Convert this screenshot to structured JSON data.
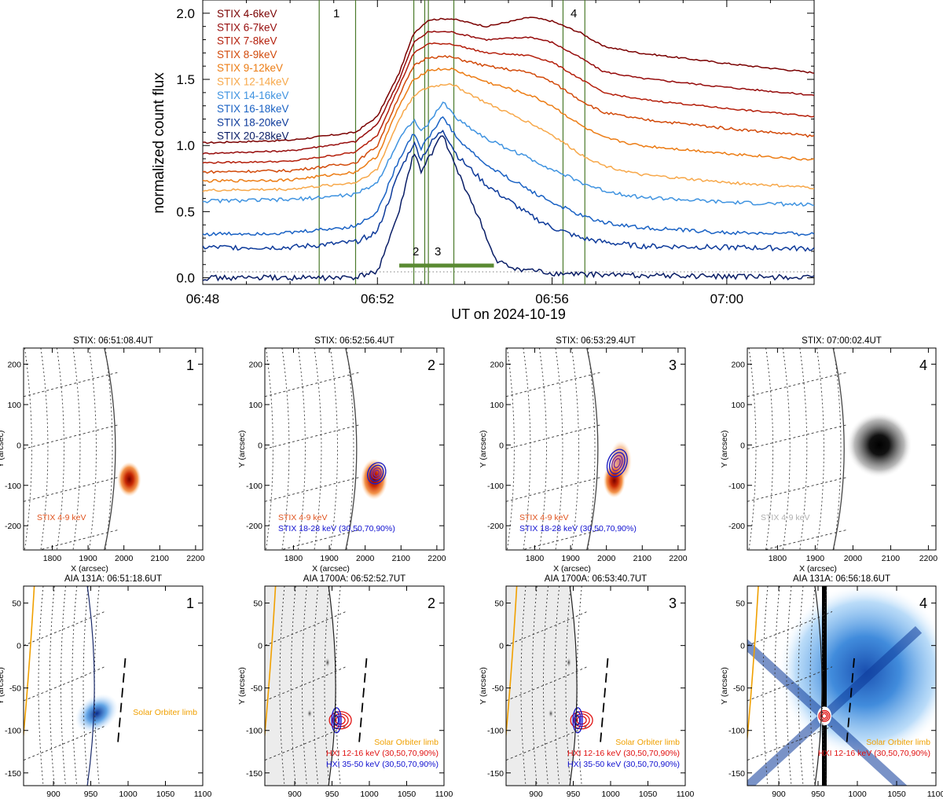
{
  "top_panel": {
    "ylabel": "normalized count flux",
    "xlabel": "UT on 2024-10-19",
    "x_ticks": [
      "06:48",
      "06:52",
      "06:56",
      "07:00"
    ],
    "y_ticks": [
      "0.0",
      "0.5",
      "1.0",
      "1.5",
      "2.0"
    ],
    "interval_labels": [
      "1",
      "2",
      "3",
      "4"
    ],
    "legend_entries": [
      {
        "label": "STIX 4-6keV",
        "color": "#7a0000"
      },
      {
        "label": "STIX 6-7keV",
        "color": "#960c0c"
      },
      {
        "label": "STIX 7-8keV",
        "color": "#b41e0a"
      },
      {
        "label": "STIX 8-9keV",
        "color": "#d24a0a"
      },
      {
        "label": "STIX 9-12keV",
        "color": "#ec7c14"
      },
      {
        "label": "STIX 12-14keV",
        "color": "#f7a84a"
      },
      {
        "label": "STIX 14-16keV",
        "color": "#3f93e0"
      },
      {
        "label": "STIX 16-18keV",
        "color": "#1a62c4"
      },
      {
        "label": "STIX 18-20keV",
        "color": "#0d3a9a"
      },
      {
        "label": "STIX 20-28keV",
        "color": "#091d66"
      }
    ]
  },
  "stix_panels": [
    {
      "title": "STIX: 06:51:08.4UT",
      "number": "1",
      "label1": "STIX 4-9 keV",
      "label1_color": "#e0531e",
      "label2": ""
    },
    {
      "title": "STIX: 06:52:56.4UT",
      "number": "2",
      "label1": "STIX 4-9 keV",
      "label1_color": "#e0531e",
      "label2": "STIX 18-28 keV (30,50,70,90%)"
    },
    {
      "title": "STIX: 06:53:29.4UT",
      "number": "3",
      "label1": "STIX 4-9 keV",
      "label1_color": "#e0531e",
      "label2": "STIX 18-28 keV (30,50,70,90%)"
    },
    {
      "title": "STIX: 07:00:02.4UT",
      "number": "4",
      "label1": "STIX 4-9 keV",
      "label1_color": "#b0b0b0",
      "label2": ""
    }
  ],
  "stix_axes": {
    "xlabel": "X (arcsec)",
    "ylabel": "Y (arcsec)",
    "x_ticks": [
      "1800",
      "1900",
      "2000",
      "2100",
      "2200"
    ],
    "y_ticks": [
      "200",
      "100",
      "0",
      "-100",
      "-200"
    ]
  },
  "aia_panels": [
    {
      "title": "AIA 131A: 06:51:18.6UT",
      "number": "1",
      "limb_label": "Solar Orbiter limb",
      "hxi1": "",
      "hxi2": ""
    },
    {
      "title": "AIA 1700A: 06:52:52.7UT",
      "number": "2",
      "limb_label": "Solar Orbiter limb",
      "hxi1": "HXI 12-16 keV (30,50,70,90%)",
      "hxi2": "HXI 35-50 keV (30,50,70,90%)"
    },
    {
      "title": "AIA 1700A: 06:53:40.7UT",
      "number": "3",
      "limb_label": "Solar Orbiter limb",
      "hxi1": "HXI 12-16 keV (30,50,70,90%)",
      "hxi2": "HXI 35-50 keV (30,50,70,90%)"
    },
    {
      "title": "AIA 131A: 06:56:18.6UT",
      "number": "4",
      "limb_label": "Solar Orbiter limb",
      "hxi1": "HXI 12-16 keV (30,50,70,90%)",
      "hxi2": ""
    }
  ],
  "aia_axes": {
    "xlabel": "X (arcsec)",
    "ylabel": "Y (arcsec)",
    "x_ticks": [
      "900",
      "950",
      "1000",
      "1050",
      "1100"
    ],
    "y_ticks": [
      "50",
      "0",
      "-50",
      "-100",
      "-150"
    ]
  },
  "colors": {
    "limb_orange": "#f0a000",
    "hxi_red": "#e01010",
    "hxi_blue": "#1010d0",
    "interval_green": "#4a7a2a",
    "bar_green": "#5a8a32"
  },
  "chart_data": {
    "type": "line",
    "title": "",
    "xlabel": "UT on 2024-10-19",
    "ylabel": "normalized count flux",
    "xlim": [
      "06:48:00",
      "07:02:00"
    ],
    "ylim": [
      -0.05,
      2.1
    ],
    "interval_lines": [
      "06:50:40",
      "06:51:30",
      "06:52:50",
      "06:53:05",
      "06:53:10",
      "06:53:45",
      "06:56:15",
      "06:56:45"
    ],
    "interval_bar": [
      "06:52:30",
      "06:54:40"
    ],
    "series": [
      {
        "name": "STIX 4-6keV",
        "color": "#7a0000",
        "points": [
          [
            "06:48:00",
            1.02
          ],
          [
            "06:50:00",
            1.04
          ],
          [
            "06:51:30",
            1.1
          ],
          [
            "06:52:00",
            1.22
          ],
          [
            "06:52:30",
            1.55
          ],
          [
            "06:52:50",
            1.85
          ],
          [
            "06:53:10",
            1.95
          ],
          [
            "06:53:40",
            1.96
          ],
          [
            "06:54:30",
            1.9
          ],
          [
            "06:55:30",
            1.97
          ],
          [
            "06:56:00",
            1.94
          ],
          [
            "06:56:40",
            1.85
          ],
          [
            "06:57:10",
            1.75
          ],
          [
            "06:58:00",
            1.7
          ],
          [
            "07:00:00",
            1.62
          ],
          [
            "07:02:00",
            1.55
          ]
        ]
      },
      {
        "name": "STIX 6-7keV",
        "color": "#960c0c",
        "points": [
          [
            "06:48:00",
            0.94
          ],
          [
            "06:50:00",
            0.96
          ],
          [
            "06:51:30",
            1.03
          ],
          [
            "06:52:00",
            1.16
          ],
          [
            "06:52:30",
            1.5
          ],
          [
            "06:52:50",
            1.78
          ],
          [
            "06:53:10",
            1.86
          ],
          [
            "06:53:40",
            1.86
          ],
          [
            "06:54:30",
            1.8
          ],
          [
            "06:55:30",
            1.82
          ],
          [
            "06:56:00",
            1.78
          ],
          [
            "06:56:40",
            1.66
          ],
          [
            "06:57:10",
            1.56
          ],
          [
            "06:58:00",
            1.51
          ],
          [
            "07:00:00",
            1.44
          ],
          [
            "07:02:00",
            1.38
          ]
        ]
      },
      {
        "name": "STIX 7-8keV",
        "color": "#b41e0a",
        "points": [
          [
            "06:48:00",
            0.87
          ],
          [
            "06:50:00",
            0.88
          ],
          [
            "06:51:30",
            0.95
          ],
          [
            "06:52:00",
            1.08
          ],
          [
            "06:52:30",
            1.45
          ],
          [
            "06:52:50",
            1.7
          ],
          [
            "06:53:10",
            1.77
          ],
          [
            "06:53:40",
            1.77
          ],
          [
            "06:54:30",
            1.7
          ],
          [
            "06:55:30",
            1.68
          ],
          [
            "06:56:00",
            1.63
          ],
          [
            "06:56:40",
            1.5
          ],
          [
            "06:57:10",
            1.4
          ],
          [
            "06:58:00",
            1.35
          ],
          [
            "07:00:00",
            1.28
          ],
          [
            "07:02:00",
            1.22
          ]
        ]
      },
      {
        "name": "STIX 8-9keV",
        "color": "#d24a0a",
        "points": [
          [
            "06:48:00",
            0.8
          ],
          [
            "06:50:00",
            0.81
          ],
          [
            "06:51:30",
            0.87
          ],
          [
            "06:52:00",
            1.0
          ],
          [
            "06:52:30",
            1.38
          ],
          [
            "06:52:50",
            1.6
          ],
          [
            "06:53:10",
            1.67
          ],
          [
            "06:53:40",
            1.67
          ],
          [
            "06:54:30",
            1.6
          ],
          [
            "06:55:30",
            1.55
          ],
          [
            "06:56:00",
            1.48
          ],
          [
            "06:56:40",
            1.34
          ],
          [
            "06:57:10",
            1.25
          ],
          [
            "06:58:00",
            1.2
          ],
          [
            "07:00:00",
            1.13
          ],
          [
            "07:02:00",
            1.07
          ]
        ]
      },
      {
        "name": "STIX 9-12keV",
        "color": "#ec7c14",
        "points": [
          [
            "06:48:00",
            0.73
          ],
          [
            "06:50:00",
            0.74
          ],
          [
            "06:51:30",
            0.8
          ],
          [
            "06:52:00",
            0.92
          ],
          [
            "06:52:30",
            1.3
          ],
          [
            "06:52:50",
            1.5
          ],
          [
            "06:53:10",
            1.57
          ],
          [
            "06:53:40",
            1.58
          ],
          [
            "06:54:30",
            1.48
          ],
          [
            "06:55:30",
            1.38
          ],
          [
            "06:56:00",
            1.3
          ],
          [
            "06:56:40",
            1.15
          ],
          [
            "06:57:10",
            1.06
          ],
          [
            "06:58:00",
            1.0
          ],
          [
            "07:00:00",
            0.94
          ],
          [
            "07:02:00",
            0.89
          ]
        ]
      },
      {
        "name": "STIX 12-14keV",
        "color": "#f7a84a",
        "points": [
          [
            "06:48:00",
            0.66
          ],
          [
            "06:50:00",
            0.67
          ],
          [
            "06:51:30",
            0.72
          ],
          [
            "06:52:00",
            0.82
          ],
          [
            "06:52:30",
            1.2
          ],
          [
            "06:52:50",
            1.38
          ],
          [
            "06:53:10",
            1.44
          ],
          [
            "06:53:40",
            1.47
          ],
          [
            "06:54:30",
            1.32
          ],
          [
            "06:55:30",
            1.17
          ],
          [
            "06:56:00",
            1.08
          ],
          [
            "06:56:40",
            0.93
          ],
          [
            "06:57:10",
            0.85
          ],
          [
            "06:58:00",
            0.78
          ],
          [
            "07:00:00",
            0.72
          ],
          [
            "07:02:00",
            0.68
          ]
        ]
      },
      {
        "name": "STIX 14-16keV",
        "color": "#3f93e0",
        "points": [
          [
            "06:48:00",
            0.58
          ],
          [
            "06:50:00",
            0.59
          ],
          [
            "06:51:30",
            0.63
          ],
          [
            "06:52:00",
            0.72
          ],
          [
            "06:52:30",
            1.05
          ],
          [
            "06:52:50",
            1.2
          ],
          [
            "06:53:00",
            1.1
          ],
          [
            "06:53:15",
            1.2
          ],
          [
            "06:53:30",
            1.33
          ],
          [
            "06:53:50",
            1.2
          ],
          [
            "06:54:30",
            1.05
          ],
          [
            "06:55:30",
            0.9
          ],
          [
            "06:56:00",
            0.82
          ],
          [
            "06:56:40",
            0.72
          ],
          [
            "06:57:10",
            0.66
          ],
          [
            "06:58:00",
            0.61
          ],
          [
            "07:00:00",
            0.57
          ],
          [
            "07:02:00",
            0.55
          ]
        ]
      },
      {
        "name": "STIX 16-18keV",
        "color": "#1a62c4",
        "points": [
          [
            "06:48:00",
            0.33
          ],
          [
            "06:50:00",
            0.34
          ],
          [
            "06:51:30",
            0.39
          ],
          [
            "06:52:00",
            0.5
          ],
          [
            "06:52:30",
            0.9
          ],
          [
            "06:52:50",
            1.1
          ],
          [
            "06:53:00",
            0.98
          ],
          [
            "06:53:15",
            1.1
          ],
          [
            "06:53:30",
            1.22
          ],
          [
            "06:53:50",
            1.05
          ],
          [
            "06:54:30",
            0.85
          ],
          [
            "06:55:30",
            0.66
          ],
          [
            "06:56:00",
            0.57
          ],
          [
            "06:56:40",
            0.47
          ],
          [
            "06:57:10",
            0.42
          ],
          [
            "06:58:00",
            0.38
          ],
          [
            "07:00:00",
            0.34
          ],
          [
            "07:02:00",
            0.33
          ]
        ]
      },
      {
        "name": "STIX 18-20keV",
        "color": "#0d3a9a",
        "points": [
          [
            "06:48:00",
            0.23
          ],
          [
            "06:50:00",
            0.23
          ],
          [
            "06:51:30",
            0.27
          ],
          [
            "06:52:00",
            0.35
          ],
          [
            "06:52:30",
            0.8
          ],
          [
            "06:52:50",
            1.02
          ],
          [
            "06:53:00",
            0.9
          ],
          [
            "06:53:15",
            1.03
          ],
          [
            "06:53:30",
            1.12
          ],
          [
            "06:53:50",
            0.92
          ],
          [
            "06:54:30",
            0.7
          ],
          [
            "06:55:30",
            0.47
          ],
          [
            "06:56:00",
            0.38
          ],
          [
            "06:56:40",
            0.3
          ],
          [
            "06:57:10",
            0.27
          ],
          [
            "06:58:00",
            0.24
          ],
          [
            "07:00:00",
            0.23
          ],
          [
            "07:02:00",
            0.22
          ]
        ]
      },
      {
        "name": "STIX 20-28keV",
        "color": "#091d66",
        "points": [
          [
            "06:48:00",
            0.0
          ],
          [
            "06:51:30",
            0.0
          ],
          [
            "06:52:00",
            0.05
          ],
          [
            "06:52:30",
            0.5
          ],
          [
            "06:52:50",
            0.95
          ],
          [
            "06:53:00",
            0.8
          ],
          [
            "06:53:15",
            0.95
          ],
          [
            "06:53:30",
            1.08
          ],
          [
            "06:53:50",
            0.8
          ],
          [
            "06:54:20",
            0.45
          ],
          [
            "06:54:40",
            0.15
          ],
          [
            "06:55:00",
            0.08
          ],
          [
            "06:56:00",
            0.03
          ],
          [
            "07:02:00",
            0.0
          ]
        ]
      }
    ],
    "stix_scale": {
      "xlim": [
        1720,
        2220
      ],
      "ylim": [
        -260,
        240
      ],
      "limb_x": 1985
    },
    "aia_scale": {
      "xlim": [
        860,
        1100
      ],
      "ylim": [
        -165,
        70
      ],
      "limb_x": 958
    }
  }
}
